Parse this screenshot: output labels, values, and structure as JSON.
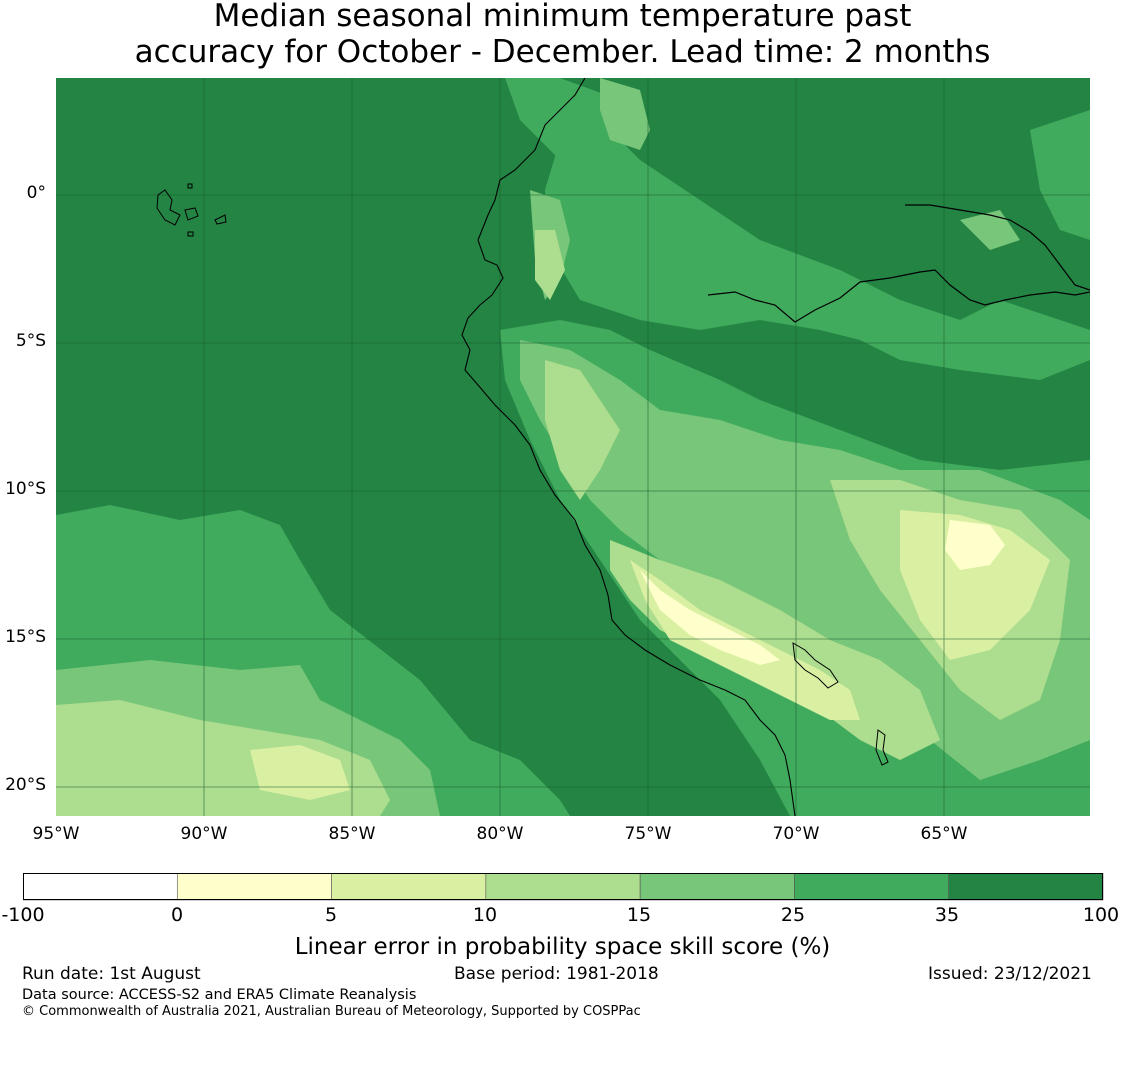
{
  "title_line1": "Median seasonal minimum temperature past",
  "title_line2": "accuracy for October - December. Lead time: 2 months",
  "map": {
    "lon_range": [
      -95,
      -60
    ],
    "lat_range": [
      -21,
      4
    ],
    "lat_ticks": [
      {
        "value": 0,
        "label": "0°"
      },
      {
        "value": -5,
        "label": "5°S"
      },
      {
        "value": -10,
        "label": "10°S"
      },
      {
        "value": -15,
        "label": "15°S"
      },
      {
        "value": -20,
        "label": "20°S"
      }
    ],
    "lon_ticks": [
      {
        "value": -95,
        "label": "95°W"
      },
      {
        "value": -90,
        "label": "90°W"
      },
      {
        "value": -85,
        "label": "85°W"
      },
      {
        "value": -80,
        "label": "80°W"
      },
      {
        "value": -75,
        "label": "75°W"
      },
      {
        "value": -70,
        "label": "70°W"
      },
      {
        "value": -65,
        "label": "65°W"
      }
    ],
    "gridlines": true
  },
  "colorbar": {
    "boundaries": [
      "-100",
      "0",
      "5",
      "10",
      "15",
      "25",
      "35",
      "100"
    ],
    "colors": [
      "#ffffff",
      "#ffffcc",
      "#d9f0a3",
      "#addd8e",
      "#78c679",
      "#41ab5d",
      "#238443"
    ],
    "label": "Linear error in probability space skill score (%)"
  },
  "footer": {
    "run_date": "Run date: 1st August",
    "base_period": "Base period: 1981-2018",
    "issued": "Issued: 23/12/2021",
    "data_source": "Data source: ACCESS-S2 and ERA5 Climate Reanalysis",
    "copyright": "© Commonwealth of Australia 2021, Australian Bureau of Meteorology, Supported by COSPPac"
  }
}
